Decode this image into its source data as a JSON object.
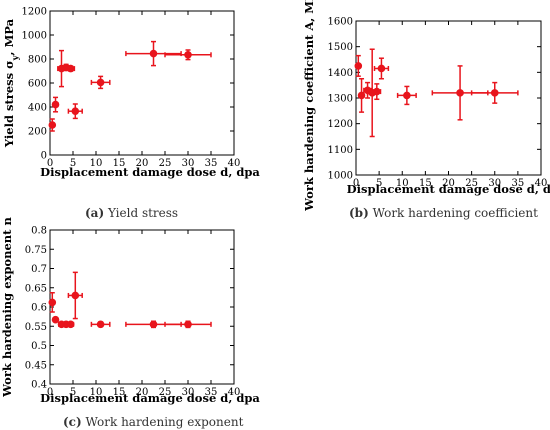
{
  "chart_data": [
    {
      "type": "scatter",
      "xlabel": "Displacement damage dose d, dpa",
      "ylabel": "Yield stress σy, MPa",
      "xlim": [
        0,
        40
      ],
      "ylim": [
        0,
        1200
      ],
      "xticks": [
        0,
        5,
        10,
        15,
        20,
        25,
        30,
        35,
        40
      ],
      "yticks": [
        0,
        200,
        400,
        600,
        800,
        1000,
        1200
      ],
      "caption_label": "(a)",
      "caption_text": "Yield stress",
      "color": "#e8141c",
      "points": [
        {
          "x": 0.5,
          "y": 250,
          "xerr": 0.3,
          "yerr": 50
        },
        {
          "x": 1.2,
          "y": 420,
          "xerr": 0.5,
          "yerr": 60
        },
        {
          "x": 2.5,
          "y": 720,
          "xerr": 0.8,
          "yerr": 150
        },
        {
          "x": 3.5,
          "y": 730,
          "xerr": 1.0,
          "yerr": 25
        },
        {
          "x": 4.5,
          "y": 720,
          "xerr": 0.8,
          "yerr": 20
        },
        {
          "x": 5.5,
          "y": 365,
          "xerr": 1.5,
          "yerr": 60
        },
        {
          "x": 11,
          "y": 605,
          "xerr": 2,
          "yerr": 50
        },
        {
          "x": 22.5,
          "y": 845,
          "xerr": 6,
          "yerr": 100
        },
        {
          "x": 30,
          "y": 835,
          "xerr": 5,
          "yerr": 40
        }
      ]
    },
    {
      "type": "scatter",
      "xlabel": "Displacement damage dose d, dpa",
      "ylabel": "Work hardening coefficient A, MPa",
      "xlim": [
        0,
        40
      ],
      "ylim": [
        1000,
        1600
      ],
      "xticks": [
        0,
        5,
        10,
        15,
        20,
        25,
        30,
        35,
        40
      ],
      "yticks": [
        1000,
        1100,
        1200,
        1300,
        1400,
        1500,
        1600
      ],
      "caption_label": "(b)",
      "caption_text": "Work hardening coefficient",
      "color": "#e8141c",
      "points": [
        {
          "x": 0.5,
          "y": 1425,
          "xerr": 0.4,
          "yerr": 40
        },
        {
          "x": 1.2,
          "y": 1310,
          "xerr": 0.5,
          "yerr": 65
        },
        {
          "x": 2.5,
          "y": 1330,
          "xerr": 0.8,
          "yerr": 30
        },
        {
          "x": 3.5,
          "y": 1320,
          "xerr": 1.0,
          "yerr": 170
        },
        {
          "x": 4.5,
          "y": 1325,
          "xerr": 0.8,
          "yerr": 30
        },
        {
          "x": 5.5,
          "y": 1415,
          "xerr": 1.5,
          "yerr": 40
        },
        {
          "x": 11,
          "y": 1310,
          "xerr": 2,
          "yerr": 35
        },
        {
          "x": 22.5,
          "y": 1320,
          "xerr": 6,
          "yerr": 105
        },
        {
          "x": 30,
          "y": 1320,
          "xerr": 5,
          "yerr": 40
        }
      ]
    },
    {
      "type": "scatter",
      "xlabel": "Displacement damage dose d, dpa",
      "ylabel": "Work hardening exponent n",
      "xlim": [
        0,
        40
      ],
      "ylim": [
        0.4,
        0.8
      ],
      "xticks": [
        0,
        5,
        10,
        15,
        20,
        25,
        30,
        35,
        40
      ],
      "yticks": [
        0.4,
        0.45,
        0.5,
        0.55,
        0.6,
        0.65,
        0.7,
        0.75,
        0.8
      ],
      "caption_label": "(c)",
      "caption_text": "Work hardening exponent",
      "color": "#e8141c",
      "points": [
        {
          "x": 0.5,
          "y": 0.612,
          "xerr": 0.4,
          "yerr": 0.025
        },
        {
          "x": 1.2,
          "y": 0.567,
          "xerr": 0.4,
          "yerr": 0.004
        },
        {
          "x": 2.5,
          "y": 0.555,
          "xerr": 0.6,
          "yerr": 0.003
        },
        {
          "x": 3.5,
          "y": 0.555,
          "xerr": 0.8,
          "yerr": 0.003
        },
        {
          "x": 4.5,
          "y": 0.555,
          "xerr": 0.6,
          "yerr": 0.003
        },
        {
          "x": 5.5,
          "y": 0.63,
          "xerr": 1.5,
          "yerr": 0.06
        },
        {
          "x": 11,
          "y": 0.555,
          "xerr": 2,
          "yerr": 0.006
        },
        {
          "x": 22.5,
          "y": 0.555,
          "xerr": 6,
          "yerr": 0.008
        },
        {
          "x": 30,
          "y": 0.555,
          "xerr": 5,
          "yerr": 0.008
        }
      ]
    }
  ]
}
